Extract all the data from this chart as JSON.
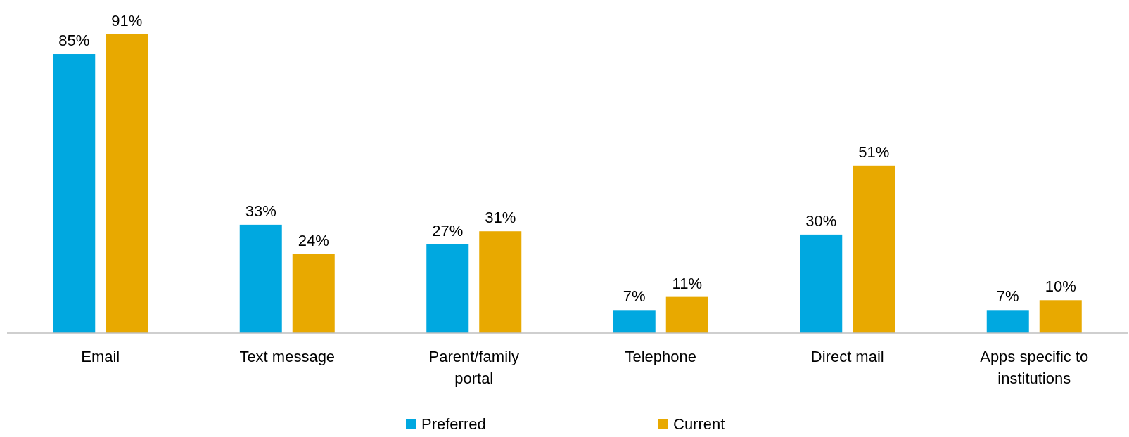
{
  "chart_data": {
    "type": "bar",
    "categories": [
      "Email",
      "Text message",
      "Parent/family portal",
      "Telephone",
      "Direct mail",
      "Apps specific to institutions"
    ],
    "series": [
      {
        "name": "Preferred",
        "color": "#00a8e0",
        "values": [
          85,
          33,
          27,
          7,
          30,
          7
        ],
        "value_labels": [
          "85%",
          "33%",
          "27%",
          "7%",
          "30%",
          "7%"
        ]
      },
      {
        "name": "Current",
        "color": "#e8a900",
        "values": [
          91,
          24,
          31,
          11,
          51,
          10
        ],
        "value_labels": [
          "91%",
          "24%",
          "31%",
          "11%",
          "51%",
          "10%"
        ]
      }
    ],
    "legend": "bottom"
  }
}
